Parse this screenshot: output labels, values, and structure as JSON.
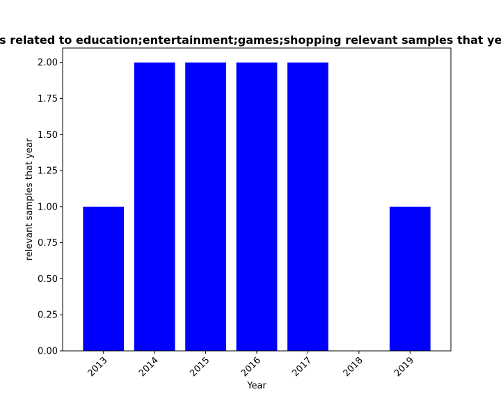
{
  "chart_data": {
    "type": "bar",
    "title": "Number of apps related to education;entertainment;games;shopping relevant samples that year in these years",
    "xlabel": "Year",
    "ylabel": "relevant samples that year",
    "categories": [
      "2013",
      "2014",
      "2015",
      "2016",
      "2017",
      "2018",
      "2019"
    ],
    "values": [
      1,
      2,
      2,
      2,
      2,
      0,
      1
    ],
    "ylim": [
      0,
      2.1
    ],
    "yticks": [
      "0.00",
      "0.25",
      "0.50",
      "0.75",
      "1.00",
      "1.25",
      "1.50",
      "1.75",
      "2.00"
    ],
    "bar_color": "#0000ff",
    "grid": false,
    "legend": "none"
  }
}
